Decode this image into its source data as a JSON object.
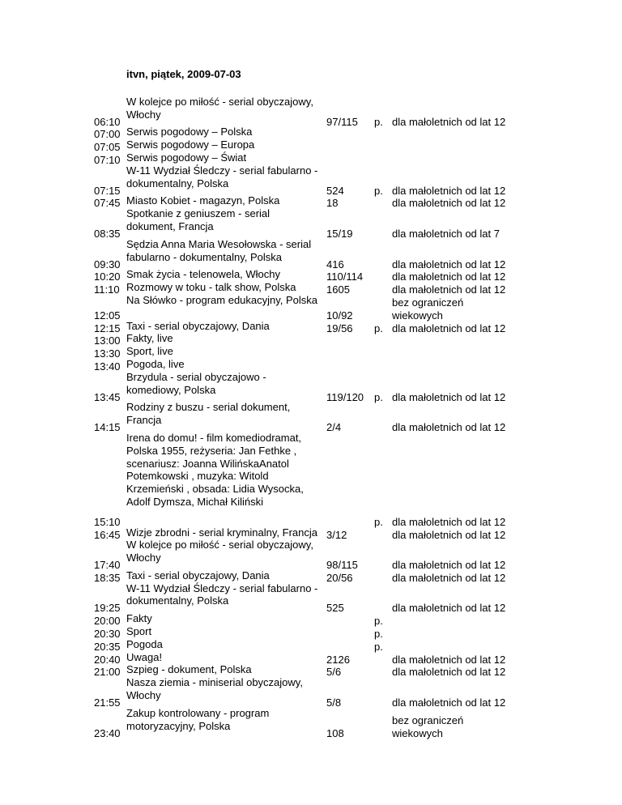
{
  "header": {
    "title": "itvn, piątek, 2009-07-03"
  },
  "schedule": {
    "rows": [
      {
        "time": "06:10",
        "title": "W kolejce po miłość - serial obyczajowy,\nWłochy",
        "episode": "97/115",
        "premiere": "p.",
        "rating": "dla małoletnich od lat 12"
      },
      {
        "time": "07:00",
        "title": "Serwis pogodowy – Polska",
        "episode": "",
        "premiere": "",
        "rating": ""
      },
      {
        "time": "07:05",
        "title": "Serwis pogodowy – Europa",
        "episode": "",
        "premiere": "",
        "rating": ""
      },
      {
        "time": "07:10",
        "title": "Serwis pogodowy – Świat",
        "episode": "",
        "premiere": "",
        "rating": ""
      },
      {
        "time": "07:15",
        "title": "W-11 Wydział Śledczy - serial fabularno -\ndokumentalny, Polska",
        "episode": "524",
        "premiere": "p.",
        "rating": "dla małoletnich od lat 12"
      },
      {
        "time": "07:45",
        "title": "Miasto Kobiet - magazyn, Polska",
        "episode": "18",
        "premiere": "",
        "rating": "dla małoletnich od lat 12"
      },
      {
        "time": "08:35",
        "title": "Spotkanie z geniuszem - serial\ndokument, Francja",
        "episode": "15/19",
        "premiere": "",
        "rating": "dla małoletnich od lat 7"
      },
      {
        "time": "09:30",
        "title": "Sędzia Anna Maria Wesołowska - serial\nfabularno - dokumentalny, Polska",
        "episode": "416",
        "premiere": "",
        "rating": "dla małoletnich od lat 12"
      },
      {
        "time": "10:20",
        "title": "Smak życia - telenowela, Włochy",
        "episode": "110/114",
        "premiere": "",
        "rating": "dla małoletnich od lat 12"
      },
      {
        "time": "11:10",
        "title": "Rozmowy w toku - talk show, Polska",
        "episode": "1605",
        "premiere": "",
        "rating": "dla małoletnich od lat 12"
      },
      {
        "time": "12:05",
        "title": "Na Słówko - program edukacyjny, Polska",
        "episode": "10/92",
        "premiere": "",
        "rating": "bez ograniczeń\nwiekowych"
      },
      {
        "time": "12:15",
        "title": "Taxi - serial obyczajowy, Dania",
        "episode": "19/56",
        "premiere": "p.",
        "rating": "dla małoletnich od lat 12"
      },
      {
        "time": "13:00",
        "title": "Fakty, live",
        "episode": "",
        "premiere": "",
        "rating": ""
      },
      {
        "time": "13:30",
        "title": "Sport, live",
        "episode": "",
        "premiere": "",
        "rating": ""
      },
      {
        "time": "13:40",
        "title": "Pogoda, live",
        "episode": "",
        "premiere": "",
        "rating": ""
      },
      {
        "time": "13:45",
        "title": "Brzydula - serial obyczajowo -\nkomediowy, Polska",
        "episode": "119/120",
        "premiere": "p.",
        "rating": "dla małoletnich od lat 12"
      },
      {
        "time": "14:15",
        "title": "Rodziny z buszu - serial dokument,\nFrancja",
        "episode": "2/4",
        "premiere": "",
        "rating": "dla małoletnich od lat 12"
      },
      {
        "time": "15:10",
        "title": "Irena do domu! - film komediodramat,\nPolska 1955, reżyseria: Jan Fethke ,\nscenariusz: Joanna WilińskaAnatol\nPotemkowski , muzyka: Witold\nKrzemieński , obsada: Lidia Wysocka,\nAdolf Dymsza, Michał Kiliński\n ",
        "episode": "",
        "premiere": "p.",
        "rating": "dla małoletnich od lat 12"
      },
      {
        "time": "16:45",
        "title": "Wizje zbrodni - serial kryminalny, Francja",
        "episode": "3/12",
        "premiere": "",
        "rating": "dla małoletnich od lat 12"
      },
      {
        "time": "17:40",
        "title": "W kolejce po miłość - serial obyczajowy,\nWłochy",
        "episode": "98/115",
        "premiere": "",
        "rating": "dla małoletnich od lat 12"
      },
      {
        "time": "18:35",
        "title": "Taxi - serial obyczajowy, Dania",
        "episode": "20/56",
        "premiere": "",
        "rating": "dla małoletnich od lat 12"
      },
      {
        "time": "19:25",
        "title": "W-11 Wydział Śledczy - serial fabularno -\ndokumentalny, Polska",
        "episode": "525",
        "premiere": "",
        "rating": "dla małoletnich od lat 12"
      },
      {
        "time": "20:00",
        "title": "Fakty",
        "episode": "",
        "premiere": "p.",
        "rating": ""
      },
      {
        "time": "20:30",
        "title": "Sport",
        "episode": "",
        "premiere": "p.",
        "rating": ""
      },
      {
        "time": "20:35",
        "title": "Pogoda",
        "episode": "",
        "premiere": "p.",
        "rating": ""
      },
      {
        "time": "20:40",
        "title": "Uwaga!",
        "episode": "2126",
        "premiere": "",
        "rating": "dla małoletnich od lat 12"
      },
      {
        "time": "21:00",
        "title": "Szpieg - dokument, Polska",
        "episode": "5/6",
        "premiere": "",
        "rating": "dla małoletnich od lat 12"
      },
      {
        "time": "21:55",
        "title": "Nasza ziemia - miniserial obyczajowy,\nWłochy",
        "episode": "5/8",
        "premiere": "",
        "rating": "dla małoletnich od lat 12"
      },
      {
        "time": "23:40",
        "title": "Zakup kontrolowany - program\nmotoryzacyjny, Polska",
        "episode": "108",
        "premiere": "",
        "rating": "bez ograniczeń\nwiekowych"
      }
    ]
  }
}
